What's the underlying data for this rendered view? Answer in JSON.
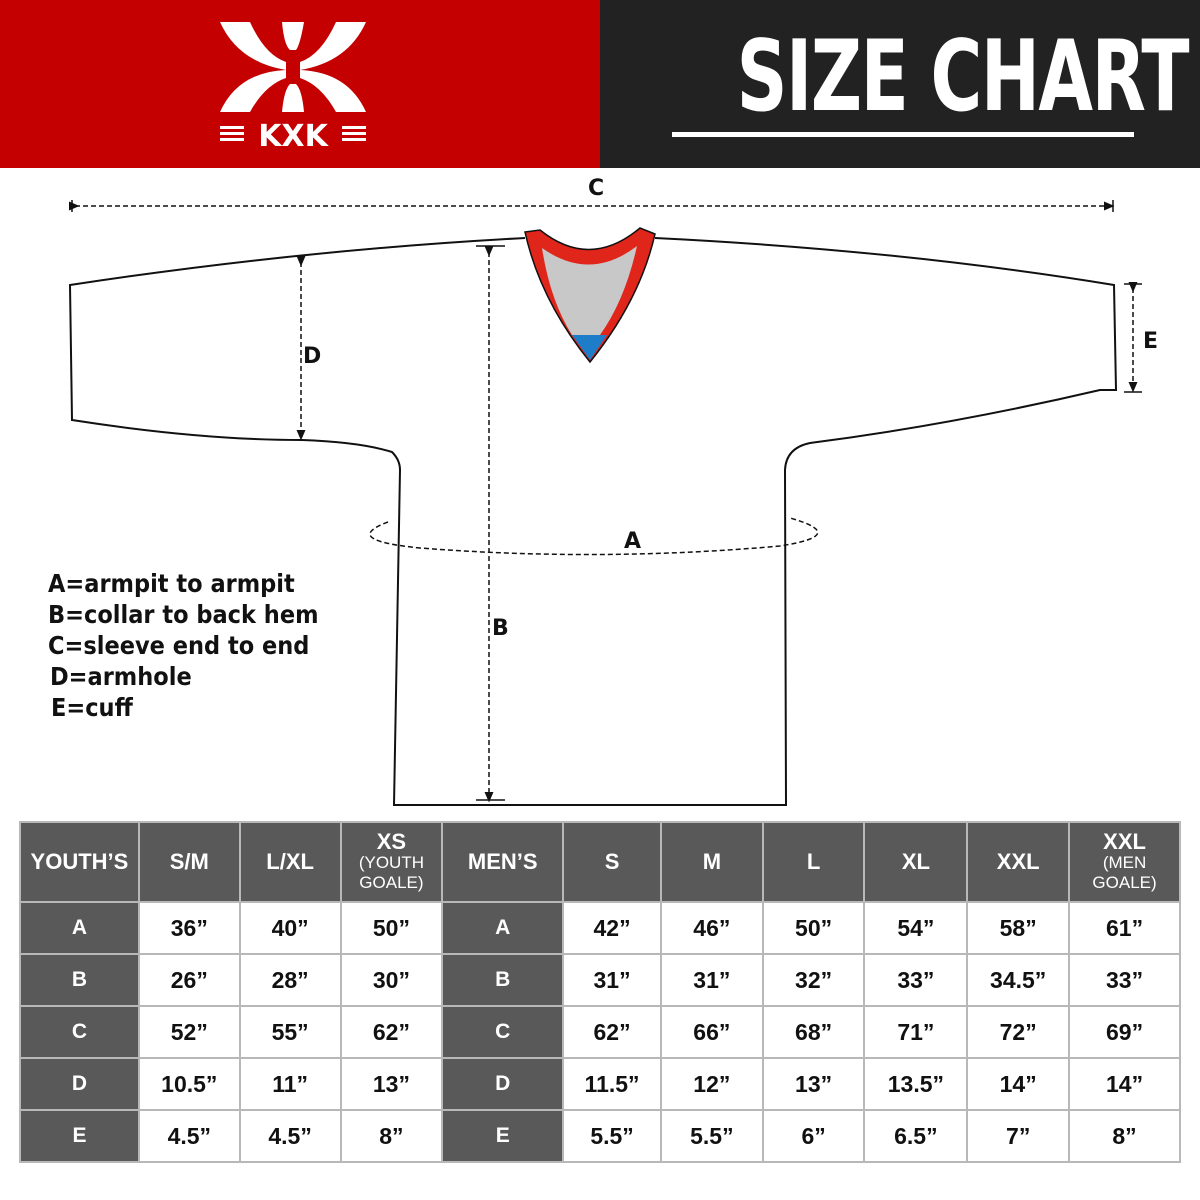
{
  "brand": {
    "logo_text": "KXK",
    "colors": {
      "red": "#c40000",
      "dark": "#222222",
      "header_gray": "#595959"
    }
  },
  "title": "SIZE CHART",
  "diagram": {
    "labels": {
      "a": "A",
      "b": "B",
      "c": "C",
      "d": "D",
      "e": "E"
    }
  },
  "legend": [
    "A=armpit to armpit",
    "B=collar to back hem",
    "C=sleeve end to end",
    "D=armhole",
    "E=cuff"
  ],
  "table": {
    "youth_header": "YOUTH’S",
    "youth_sizes": [
      {
        "main": "S/M"
      },
      {
        "main": "L/XL"
      },
      {
        "main": "XS",
        "sub": "(YOUTH GOALE)"
      }
    ],
    "men_header": "MEN’S",
    "men_sizes": [
      {
        "main": "S"
      },
      {
        "main": "M"
      },
      {
        "main": "L"
      },
      {
        "main": "XL"
      },
      {
        "main": "XXL"
      },
      {
        "main": "XXL",
        "sub": "(MEN GOALE)"
      }
    ],
    "rows": [
      {
        "label": "A",
        "youth": [
          "36”",
          "40”",
          "50”"
        ],
        "men": [
          "42”",
          "46”",
          "50”",
          "54”",
          "58”",
          "61”"
        ]
      },
      {
        "label": "B",
        "youth": [
          "26”",
          "28”",
          "30”"
        ],
        "men": [
          "31”",
          "31”",
          "32”",
          "33”",
          "34.5”",
          "33”"
        ]
      },
      {
        "label": "C",
        "youth": [
          "52”",
          "55”",
          "62”"
        ],
        "men": [
          "62”",
          "66”",
          "68”",
          "71”",
          "72”",
          "69”"
        ]
      },
      {
        "label": "D",
        "youth": [
          "10.5”",
          "11”",
          "13”"
        ],
        "men": [
          "11.5”",
          "12”",
          "13”",
          "13.5”",
          "14”",
          "14”"
        ]
      },
      {
        "label": "E",
        "youth": [
          "4.5”",
          "4.5”",
          "8”"
        ],
        "men": [
          "5.5”",
          "5.5”",
          "6”",
          "6.5”",
          "7”",
          "8”"
        ]
      }
    ]
  }
}
